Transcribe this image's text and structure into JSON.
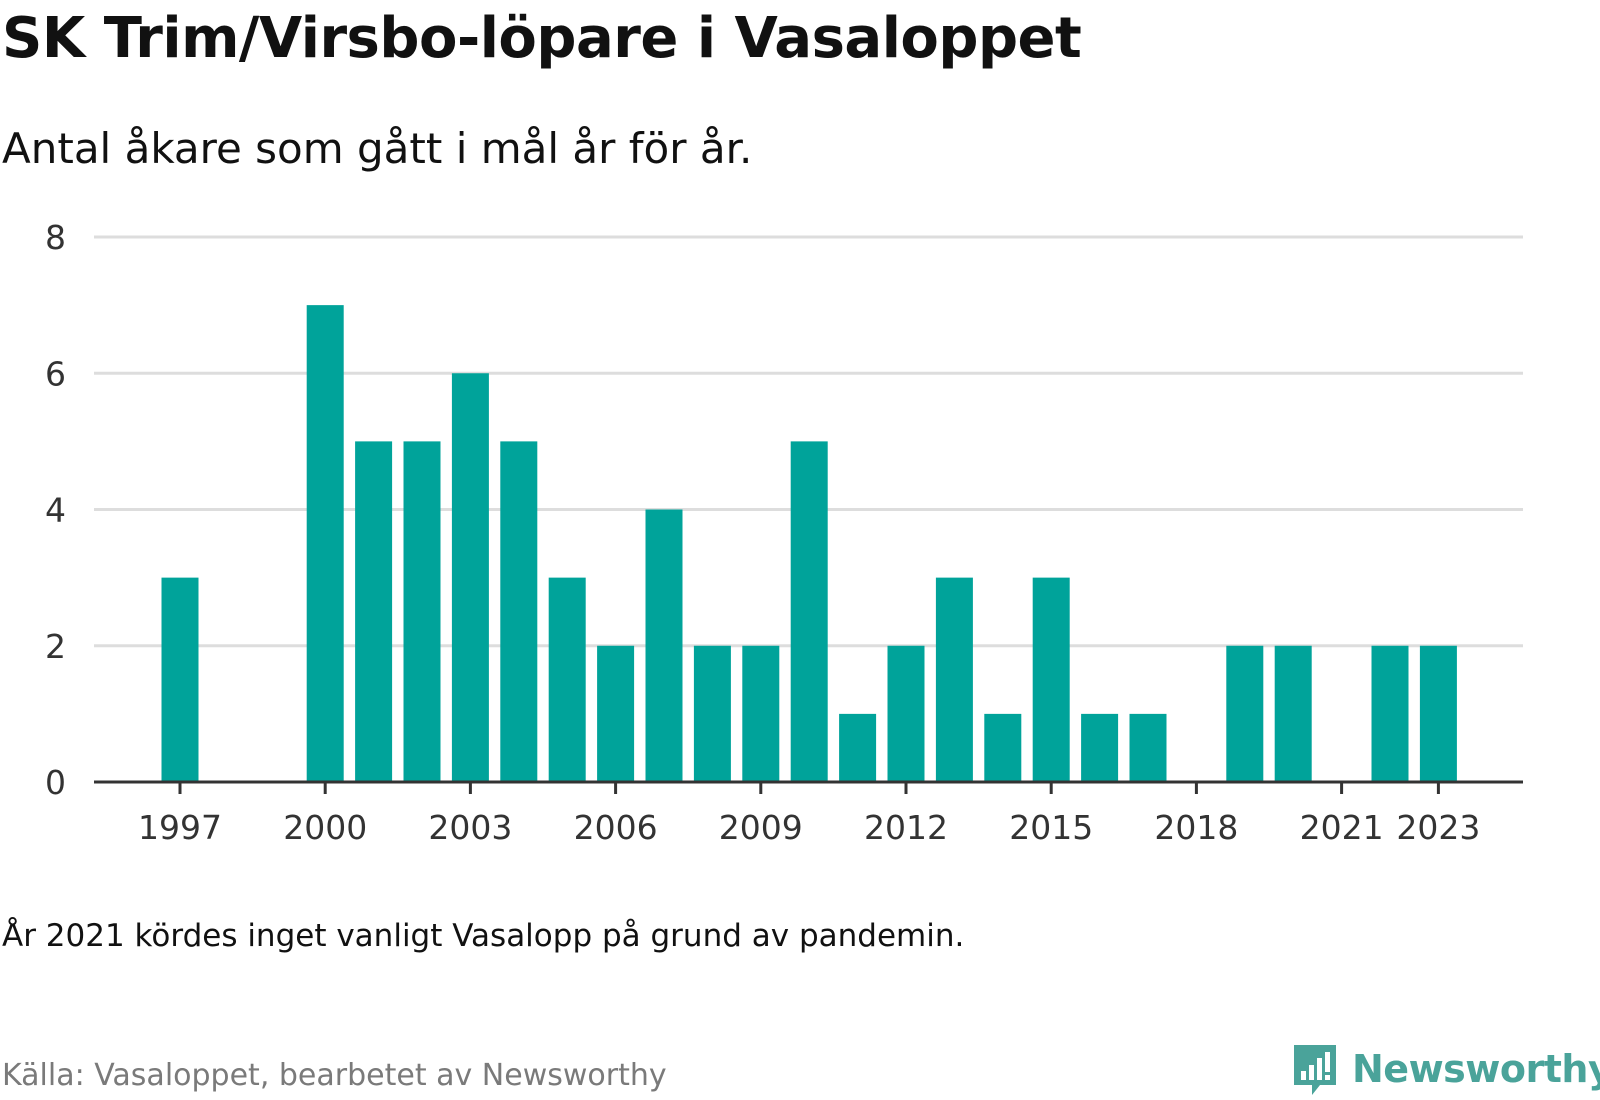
{
  "header": {
    "title": "SK Trim/Virsbo-löpare i Vasaloppet",
    "subtitle": "Antal åkare som gått i mål år för år."
  },
  "footer": {
    "note": "År 2021 kördes inget vanligt Vasalopp på grund av pandemin.",
    "source": "Källa: Vasaloppet, bearbetet av Newsworthy",
    "brand": "Newsworthy"
  },
  "colors": {
    "bar": "#00a39a",
    "grid": "#dddddd",
    "axis": "#333333",
    "brand": "#4aa39a"
  },
  "chart_data": {
    "type": "bar",
    "x": [
      1997,
      1998,
      1999,
      2000,
      2001,
      2002,
      2003,
      2004,
      2005,
      2006,
      2007,
      2008,
      2009,
      2010,
      2011,
      2012,
      2013,
      2014,
      2015,
      2016,
      2017,
      2018,
      2019,
      2020,
      2021,
      2022,
      2023
    ],
    "values": [
      3,
      0,
      0,
      7,
      5,
      5,
      6,
      5,
      3,
      2,
      4,
      2,
      2,
      5,
      1,
      2,
      3,
      1,
      3,
      1,
      1,
      0,
      2,
      2,
      0,
      2,
      2
    ],
    "xticks": [
      "1997",
      "2000",
      "2003",
      "2006",
      "2009",
      "2012",
      "2015",
      "2018",
      "2021",
      "2023"
    ],
    "yticks": [
      "0",
      "2",
      "4",
      "6",
      "8"
    ],
    "ylim": [
      0,
      8
    ],
    "grid": true,
    "legend": "none"
  }
}
